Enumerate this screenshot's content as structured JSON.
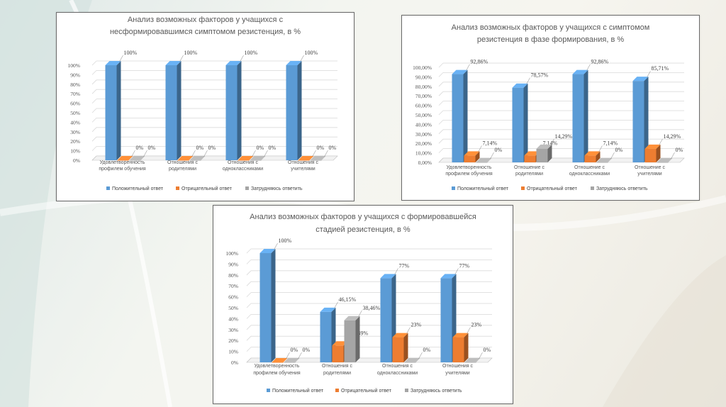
{
  "colors": {
    "positive": "#5b9bd5",
    "negative": "#ed7d31",
    "neutral": "#a5a5a5",
    "grid": "#d9d9d9"
  },
  "chart_data": [
    {
      "type": "bar",
      "title_lines": [
        "Анализ возможных факторов у учащихся с",
        "несформировавшимся симптомом резистенция, в %"
      ],
      "categories": [
        [
          "Удовлетворенность",
          "профилем обучения"
        ],
        [
          "Отношения с",
          "родителями"
        ],
        [
          "Отношения с",
          "одноклассниками"
        ],
        [
          "Отношения с",
          "учителями"
        ]
      ],
      "yticks": [
        "0%",
        "10%",
        "20%",
        "30%",
        "40%",
        "50%",
        "60%",
        "70%",
        "80%",
        "90%",
        "100%"
      ],
      "ylim": [
        0,
        100
      ],
      "legend": [
        "Положительный ответ",
        "Отрицательный ответ",
        "Затрудняюсь ответить"
      ],
      "series": [
        {
          "name": "Положительный ответ",
          "values": [
            100,
            100,
            100,
            100
          ],
          "labels": [
            "100%",
            "100%",
            "100%",
            "100%"
          ]
        },
        {
          "name": "Отрицательный ответ",
          "values": [
            0,
            0,
            0,
            0
          ],
          "labels": [
            "0%",
            "0%",
            "0%",
            "0%"
          ]
        },
        {
          "name": "Затрудняюсь ответить",
          "values": [
            0,
            0,
            0,
            0
          ],
          "labels": [
            "0%",
            "0%",
            "0%",
            "0%"
          ]
        }
      ]
    },
    {
      "type": "bar",
      "title_lines": [
        "Анализ возможных факторов у учащихся с симптомом",
        "резистенция в фазе формирования, в %"
      ],
      "categories": [
        [
          "Удовлетворенность",
          "профилем обучения"
        ],
        [
          "Отношение с",
          "родителями"
        ],
        [
          "Отношение с",
          "одноклассниками"
        ],
        [
          "Отношение с",
          "учителями"
        ]
      ],
      "yticks": [
        "0,00%",
        "10,00%",
        "20,00%",
        "30,00%",
        "40,00%",
        "50,00%",
        "60,00%",
        "70,00%",
        "80,00%",
        "90,00%",
        "100,00%"
      ],
      "ylim": [
        0,
        100
      ],
      "legend": [
        "Положительный ответ",
        "Отрицательный ответ",
        "Затрудняюсь ответить"
      ],
      "series": [
        {
          "name": "Положительный ответ",
          "values": [
            92.86,
            78.57,
            92.86,
            85.71
          ],
          "labels": [
            "92,86%",
            "78,57%",
            "92,86%",
            "85,71%"
          ]
        },
        {
          "name": "Отрицательный ответ",
          "values": [
            7.14,
            7.14,
            7.14,
            14.29
          ],
          "labels": [
            "7,14%",
            "7,14%",
            "7,14%",
            "14,29%"
          ]
        },
        {
          "name": "Затрудняюсь ответить",
          "values": [
            0,
            14.29,
            0,
            0
          ],
          "labels": [
            "0%",
            "14,29%",
            "0%",
            "0%"
          ]
        }
      ]
    },
    {
      "type": "bar",
      "title_lines": [
        "Анализ возможных факторов у учащихся с формировавшейся",
        "стадией резистенция, в %"
      ],
      "categories": [
        [
          "Удовлетворенность",
          "профилем обучения"
        ],
        [
          "Отношения с",
          "родителями"
        ],
        [
          "Отношения с",
          "одноклассниками"
        ],
        [
          "Отношения с",
          "учителями"
        ]
      ],
      "yticks": [
        "0%",
        "10%",
        "20%",
        "30%",
        "40%",
        "50%",
        "60%",
        "70%",
        "80%",
        "90%",
        "100%"
      ],
      "ylim": [
        0,
        100
      ],
      "legend": [
        "Положительный ответ",
        "Отрицательный ответ",
        "Затрудняюсь ответить"
      ],
      "series": [
        {
          "name": "Положительный ответ",
          "values": [
            100,
            46.15,
            77,
            77
          ],
          "labels": [
            "100%",
            "46,15%",
            "77%",
            "77%"
          ]
        },
        {
          "name": "Отрицательный ответ",
          "values": [
            0,
            15.39,
            23,
            23
          ],
          "labels": [
            "0%",
            "15,39%",
            "23%",
            "23%"
          ]
        },
        {
          "name": "Затрудняюсь ответить",
          "values": [
            0,
            38.46,
            0,
            0
          ],
          "labels": [
            "0%",
            "38,46%",
            "0%",
            "0%"
          ]
        }
      ]
    }
  ]
}
